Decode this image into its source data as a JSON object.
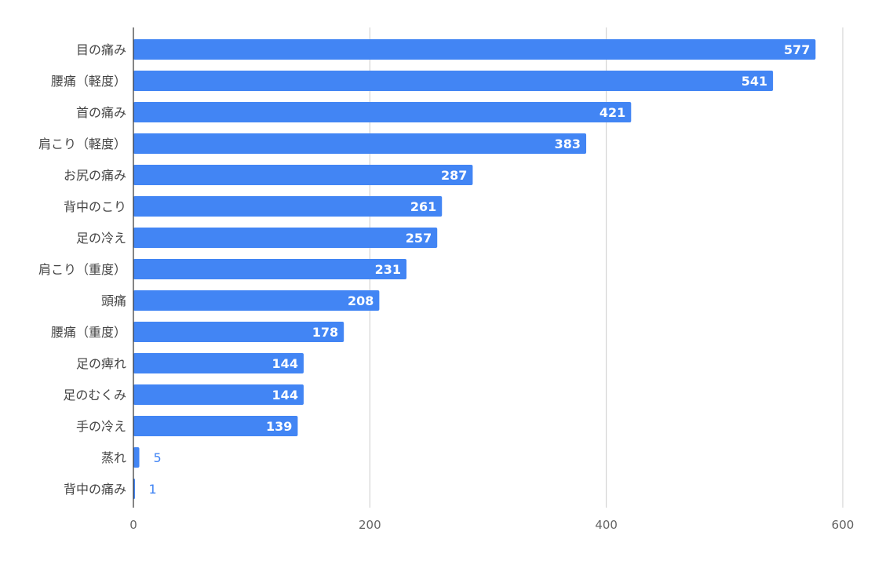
{
  "chart_data": {
    "type": "bar",
    "orientation": "horizontal",
    "title": "",
    "xlabel": "",
    "ylabel": "",
    "categories": [
      "目の痛み",
      "腰痛（軽度）",
      "首の痛み",
      "肩こり（軽度）",
      "お尻の痛み",
      "背中のこり",
      "足の冷え",
      "肩こり（重度）",
      "頭痛",
      "腰痛（重度）",
      "足の痺れ",
      "足のむくみ",
      "手の冷え",
      "蒸れ",
      "背中の痛み"
    ],
    "values": [
      577,
      541,
      421,
      383,
      287,
      261,
      257,
      231,
      208,
      178,
      144,
      144,
      139,
      5,
      1
    ],
    "data_labels": [
      "577",
      "541",
      "421",
      "383",
      "287",
      "261",
      "257",
      "231",
      "208",
      "178",
      "144",
      "144",
      "139",
      "5",
      "1"
    ],
    "xlim": [
      0,
      600
    ],
    "x_ticks": [
      0,
      200,
      400,
      600
    ],
    "x_tick_labels": [
      "0",
      "200",
      "400",
      "600"
    ],
    "grid": true,
    "legend": "none",
    "colors": {
      "bar": "#4285f4",
      "label_inside": "#ffffff",
      "label_outside": "#4285f4",
      "grid": "#cccccc",
      "axis": "#333333",
      "category_text": "#444444",
      "tick_text": "#666666"
    }
  }
}
